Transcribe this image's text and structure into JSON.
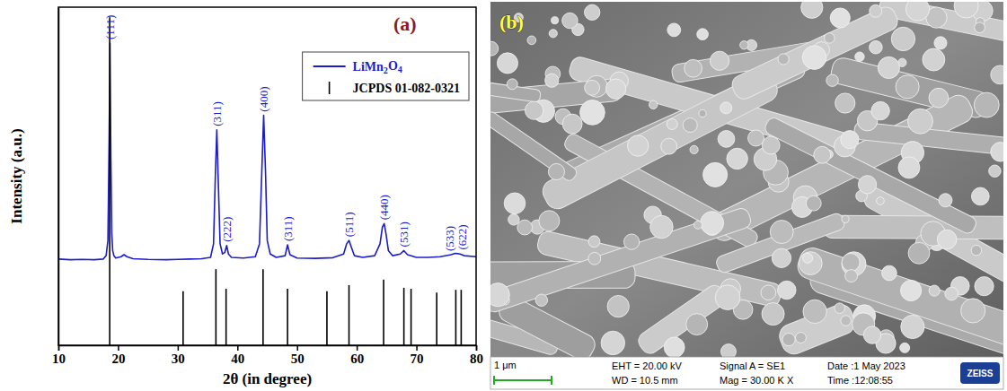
{
  "chart_data": {
    "type": "line",
    "panel_label": "(a)",
    "x_label": "2θ (in degree)",
    "y_label": "Intensity (a.u.)",
    "xlim": [
      10,
      80
    ],
    "xticks": [
      10,
      20,
      30,
      40,
      50,
      60,
      70,
      80
    ],
    "ylim": [
      0,
      100
    ],
    "tick_labels": "x",
    "grid": false,
    "legend": "upper right",
    "series": [
      {
        "name": "LiMn2O4",
        "color": "#1c1cc8",
        "type": "line",
        "x": [
          10,
          12,
          14,
          16,
          17.5,
          18,
          18.3,
          18.5,
          18.65,
          18.8,
          18.95,
          19.1,
          19.3,
          19.6,
          20.5,
          21,
          21.5,
          22.5,
          25,
          28,
          30,
          32,
          34,
          35.5,
          36,
          36.3,
          36.55,
          36.8,
          37.1,
          37.5,
          37.9,
          38.2,
          38.5,
          39,
          41,
          43,
          43.7,
          44.1,
          44.4,
          44.7,
          45,
          45.5,
          46.5,
          48,
          48.4,
          48.8,
          50,
          53,
          56,
          57.8,
          58.3,
          58.7,
          59.1,
          59.6,
          61,
          63,
          63.9,
          64.3,
          64.6,
          64.9,
          65.3,
          66,
          67.3,
          67.9,
          68.5,
          70,
          72,
          74,
          75.8,
          76.5,
          77.3,
          78,
          80
        ],
        "values": [
          25.5,
          25.3,
          25.4,
          25.3,
          25.5,
          26.5,
          31,
          60,
          89.4,
          55,
          33,
          28,
          26.5,
          25.8,
          26.2,
          26.8,
          26.2,
          25.6,
          25.4,
          25.3,
          25.4,
          25.5,
          25.6,
          26,
          30,
          50,
          63.7,
          48,
          30,
          27,
          27.5,
          29.5,
          27,
          26,
          25.8,
          26.2,
          30,
          52,
          68,
          52,
          31,
          27,
          26,
          26.5,
          29.7,
          26.8,
          25.8,
          25.7,
          25.9,
          27,
          30,
          31,
          29,
          26.5,
          26,
          26.5,
          30,
          35,
          36,
          33,
          28,
          26.5,
          27,
          28,
          26.8,
          26,
          26,
          26.2,
          26.8,
          27.2,
          27,
          26.5,
          26.2
        ]
      },
      {
        "name": "JCPDS 01-082-0321",
        "color": "#000000",
        "type": "stick",
        "x": [
          18.6,
          30.9,
          36.4,
          38.1,
          44.3,
          48.4,
          55.0,
          58.7,
          64.5,
          67.9,
          69.1,
          73.4,
          76.6,
          77.5
        ],
        "values": [
          97,
          16,
          22.5,
          16.7,
          22.5,
          16.7,
          16,
          17.8,
          19.4,
          17,
          16.7,
          15.6,
          16.4,
          16.4
        ]
      }
    ],
    "annotations": [
      {
        "text": "(111)",
        "x": 18.65,
        "y": 89.4
      },
      {
        "text": "(311)",
        "x": 36.55,
        "y": 63.7
      },
      {
        "text": "(222)",
        "x": 38.2,
        "y": 29.5
      },
      {
        "text": "(400)",
        "x": 44.4,
        "y": 68
      },
      {
        "text": "(311)",
        "x": 48.4,
        "y": 29.7
      },
      {
        "text": "(511)",
        "x": 58.7,
        "y": 31
      },
      {
        "text": "(440)",
        "x": 64.6,
        "y": 36
      },
      {
        "text": "(531)",
        "x": 67.9,
        "y": 28
      },
      {
        "text": "(533)",
        "x": 75.6,
        "y": 26.8
      },
      {
        "text": "(622)",
        "x": 77.7,
        "y": 27.2
      }
    ]
  },
  "image_panel": {
    "label": "(b)",
    "scale_bar": "1 μm",
    "info": [
      [
        "EHT = 20.00 kV",
        "WD = 10.5 mm"
      ],
      [
        "Signal A = SE1",
        "Mag = 30.00 K X"
      ],
      [
        "Date :1 May 2023",
        "Time :12:08:55"
      ]
    ],
    "logo": "ZEISS"
  }
}
